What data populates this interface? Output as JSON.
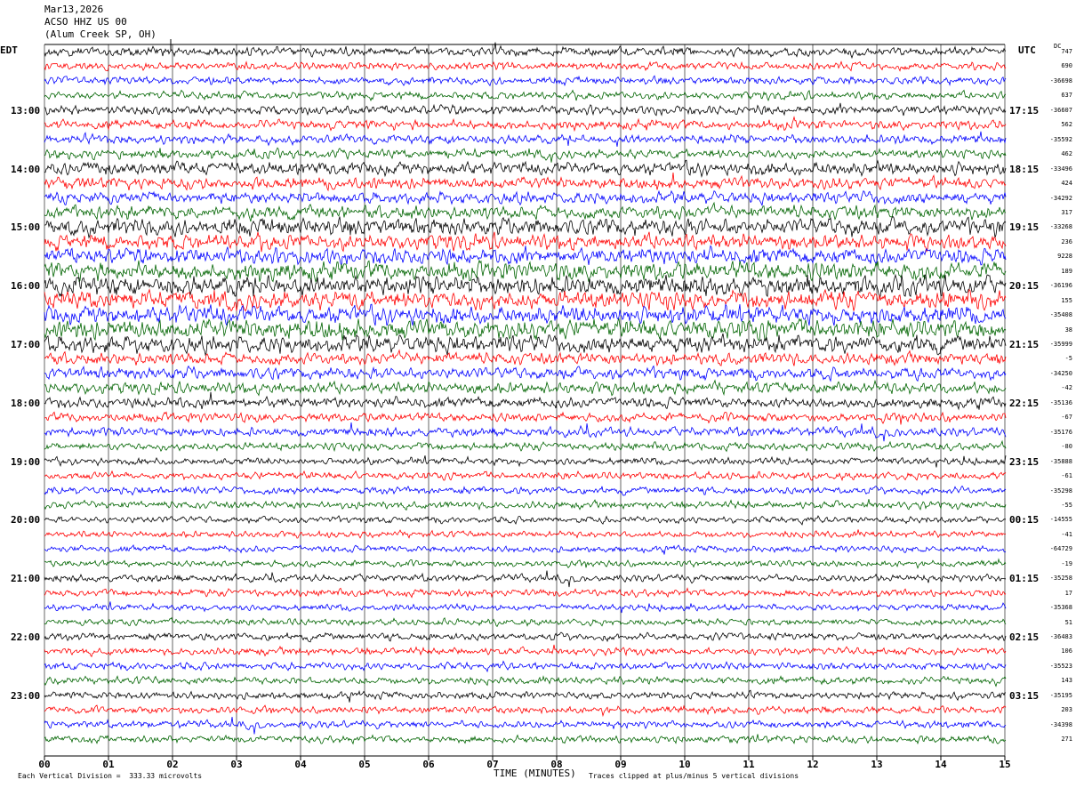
{
  "header": {
    "date": "Mar13,2026",
    "station": "ACSO HHZ US 00",
    "location": "(Alum Creek SP, OH)",
    "left_tz": "EDT",
    "right_tz": "UTC",
    "dc_label": "DC"
  },
  "footer": {
    "scale": "Each Vertical Division =  333.33 microvolts",
    "xlabel": "TIME (MINUTES)",
    "clip_note": "Traces clipped at plus/minus 5 vertical divisions"
  },
  "colors": {
    "trace_cycle": [
      "#000000",
      "#ff0000",
      "#0000ff",
      "#006400"
    ],
    "grid": "#000000"
  },
  "chart_data": {
    "type": "line",
    "title": "ACSO HHZ US 00",
    "xlabel": "TIME (MINUTES)",
    "xlim": [
      0,
      15
    ],
    "x_ticks": [
      "00",
      "01",
      "02",
      "03",
      "04",
      "05",
      "06",
      "07",
      "08",
      "09",
      "10",
      "11",
      "12",
      "13",
      "14",
      "15"
    ],
    "left_time_labels": [
      "13:00",
      "14:00",
      "15:00",
      "16:00",
      "17:00",
      "18:00",
      "19:00",
      "20:00",
      "21:00",
      "22:00",
      "23:00"
    ],
    "right_time_labels": [
      "17:15",
      "18:15",
      "19:15",
      "20:15",
      "21:15",
      "22:15",
      "23:15",
      "00:15",
      "01:15",
      "02:15",
      "03:15"
    ],
    "trace_count": 48,
    "traces_per_hour": 4,
    "minutes_per_trace": 15,
    "dc_offsets": [
      "747",
      "690",
      "-36698",
      "637",
      "-36607",
      "562",
      "-35592",
      "462",
      "-33496",
      "424",
      "-34292",
      "317",
      "-33268",
      "236",
      "9228",
      "189",
      "-36196",
      "155",
      "-35408",
      "38",
      "-35999",
      "-5",
      "-34250",
      "-42",
      "-35136",
      "-67",
      "-35176",
      "-80",
      "-35888",
      "-61",
      "-35298",
      "-55",
      "-14555",
      "-41",
      "-64729",
      "-19",
      "-35258",
      "17",
      "-35368",
      "51",
      "-36483",
      "106",
      "-35523",
      "143",
      "-35195",
      "203",
      "-34398",
      "271"
    ],
    "relative_amplitude": [
      0.35,
      0.3,
      0.3,
      0.3,
      0.35,
      0.35,
      0.35,
      0.35,
      0.5,
      0.45,
      0.45,
      0.5,
      0.65,
      0.6,
      0.6,
      0.7,
      0.75,
      0.7,
      0.7,
      0.75,
      0.65,
      0.45,
      0.45,
      0.45,
      0.4,
      0.35,
      0.35,
      0.3,
      0.28,
      0.28,
      0.28,
      0.28,
      0.25,
      0.25,
      0.25,
      0.25,
      0.28,
      0.28,
      0.25,
      0.25,
      0.28,
      0.28,
      0.28,
      0.28,
      0.28,
      0.28,
      0.28,
      0.28
    ]
  }
}
